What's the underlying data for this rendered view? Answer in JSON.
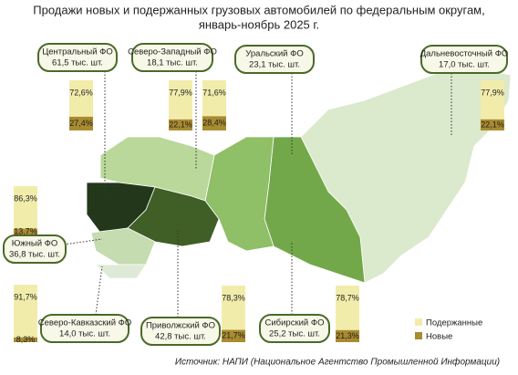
{
  "title": [
    "Продажи новых и подержанных грузовых автомобилей по федеральным округам,",
    "январь-ноябрь 2025 г."
  ],
  "districts": [
    {
      "name": "Центральный ФО",
      "volume": "61,5 тыс. шт.",
      "used": 72.6,
      "new": 27.4,
      "used_label": "72,6%",
      "new_label": "27,4%"
    },
    {
      "name": "Северо-Западный ФО",
      "volume": "18,1 тыс. шт.",
      "used": 77.9,
      "new": 22.1,
      "used_label": "77,9%",
      "new_label": "22,1%"
    },
    {
      "name": "Уральский ФО",
      "volume": "23,1 тыс. шт.",
      "used": 71.6,
      "new": 28.4,
      "used_label": "71,6%",
      "new_label": "28,4%"
    },
    {
      "name": "Дальневосточный ФО",
      "volume": "17,0 тыс. шт.",
      "used": 77.9,
      "new": 22.1,
      "used_label": "77,9%",
      "new_label": "22,1%"
    },
    {
      "name": "Южный ФО",
      "volume": "36,8 тыс. шт.",
      "used": 86.3,
      "new": 13.7,
      "used_label": "86,3%",
      "new_label": "13,7%"
    },
    {
      "name": "Северо-Кавказский ФО",
      "volume": "14,0 тыс. шт.",
      "used": 91.7,
      "new": 8.3,
      "used_label": "91,7%",
      "new_label": "8,3%"
    },
    {
      "name": "Приволжский ФО",
      "volume": "42,8 тыс. шт.",
      "used": 78.3,
      "new": 21.7,
      "used_label": "78,3%",
      "new_label": "21,7%"
    },
    {
      "name": "Сибирский ФО",
      "volume": "25,2 тыс. шт.",
      "used": 78.7,
      "new": 21.3,
      "used_label": "78,7%",
      "new_label": "21,3%"
    }
  ],
  "legend": {
    "used": "Подержанные",
    "new": "Новые"
  },
  "source": "Источник: НАПИ (Национальное Агентство Промышленной Информации)"
}
